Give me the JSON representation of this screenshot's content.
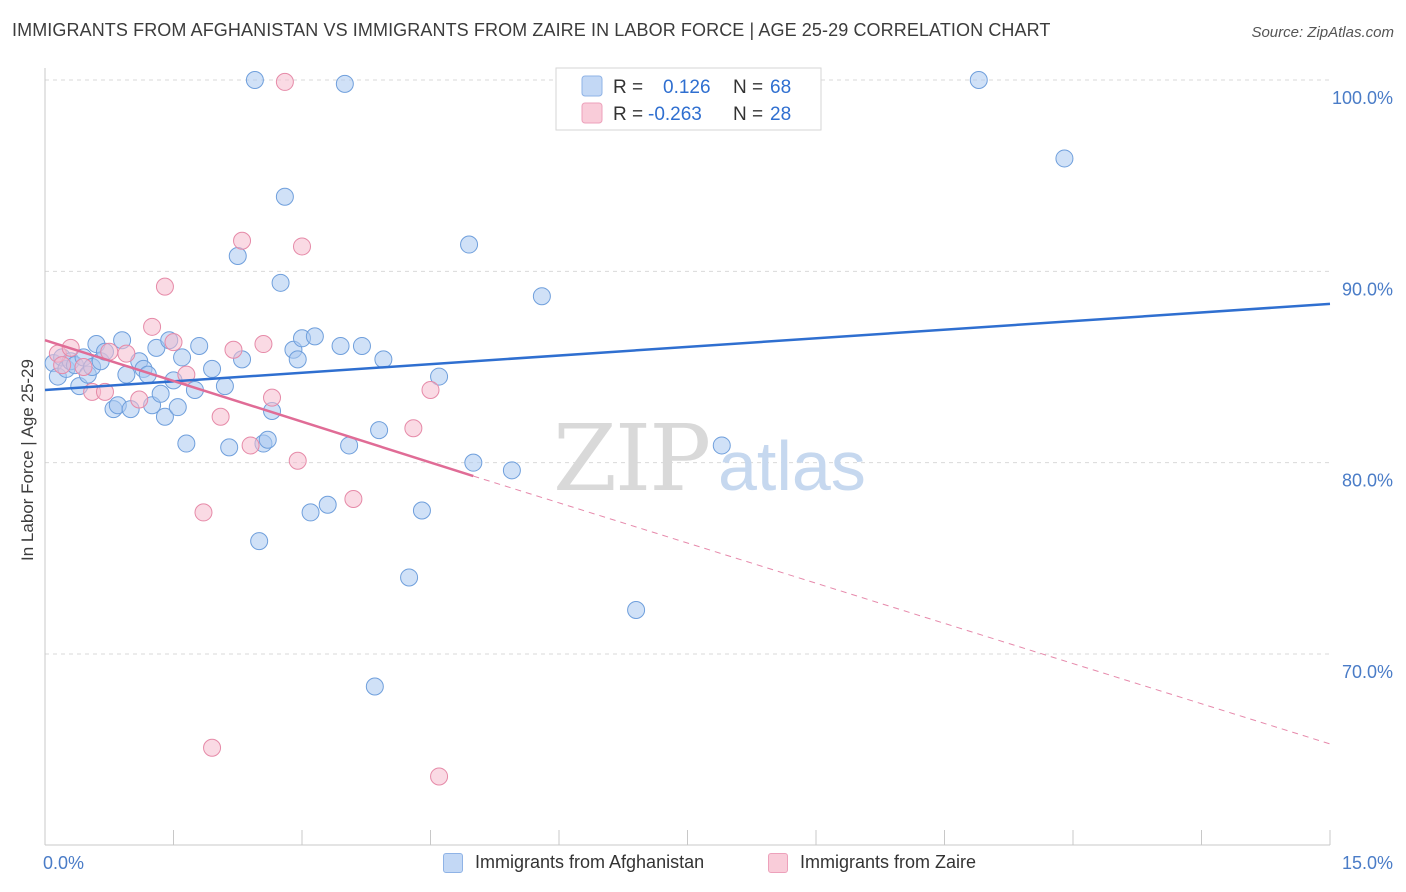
{
  "header": {
    "title": "IMMIGRANTS FROM AFGHANISTAN VS IMMIGRANTS FROM ZAIRE IN LABOR FORCE | AGE 25-29 CORRELATION CHART",
    "source": "Source: ZipAtlas.com"
  },
  "legend": {
    "row1": {
      "r_label": "R =",
      "r_value": "0.126",
      "n_label": "N =",
      "n_value": "68"
    },
    "row2": {
      "r_label": "R =",
      "r_value": "-0.263",
      "n_label": "N =",
      "n_value": "28"
    }
  },
  "bottom_legend": {
    "afghanistan": "Immigrants from Afghanistan",
    "zaire": "Immigrants from Zaire"
  },
  "watermark": {
    "zip": "ZIP",
    "atlas": "atlas"
  },
  "colors": {
    "blue_fill": "#aac8f0",
    "blue_stroke": "#6f9fdc",
    "blue_line": "#2f6fd0",
    "pink_fill": "#f6bccd",
    "pink_stroke": "#e68aa8",
    "pink_line": "#e06c96",
    "tick_text": "#4a7cc7",
    "grid": "#d9d9d9"
  },
  "chart_data": {
    "type": "scatter",
    "title": "IMMIGRANTS FROM AFGHANISTAN VS IMMIGRANTS FROM ZAIRE IN LABOR FORCE | AGE 25-29 CORRELATION CHART",
    "xlabel": "",
    "ylabel": "In Labor Force | Age 25-29",
    "xlim": [
      0,
      15
    ],
    "ylim": [
      60,
      103
    ],
    "x_tick_labels": [
      "0.0%",
      "15.0%"
    ],
    "y_ticks": [
      70,
      80,
      90,
      100
    ],
    "y_tick_labels": [
      "70.0%",
      "80.0%",
      "90.0%",
      "100.0%"
    ],
    "grid": true,
    "legend_position": "top-center",
    "series": [
      {
        "name": "Immigrants from Afghanistan",
        "color": "#aac8f0",
        "points": [
          [
            0.1,
            85.2
          ],
          [
            0.15,
            84.5
          ],
          [
            0.2,
            85.5
          ],
          [
            0.25,
            84.9
          ],
          [
            0.3,
            85.3
          ],
          [
            0.35,
            85.1
          ],
          [
            0.4,
            84.0
          ],
          [
            0.45,
            85.5
          ],
          [
            0.5,
            84.6
          ],
          [
            0.55,
            85.0
          ],
          [
            0.6,
            86.2
          ],
          [
            0.65,
            85.3
          ],
          [
            0.7,
            85.8
          ],
          [
            0.8,
            82.8
          ],
          [
            0.85,
            83.0
          ],
          [
            0.9,
            86.4
          ],
          [
            0.95,
            84.6
          ],
          [
            1.0,
            82.8
          ],
          [
            1.1,
            85.3
          ],
          [
            1.15,
            84.9
          ],
          [
            1.2,
            84.6
          ],
          [
            1.25,
            83.0
          ],
          [
            1.3,
            86.0
          ],
          [
            1.35,
            83.6
          ],
          [
            1.4,
            82.4
          ],
          [
            1.45,
            86.4
          ],
          [
            1.5,
            84.3
          ],
          [
            1.55,
            82.9
          ],
          [
            1.6,
            85.5
          ],
          [
            1.65,
            81.0
          ],
          [
            1.75,
            83.8
          ],
          [
            1.8,
            86.1
          ],
          [
            1.95,
            84.9
          ],
          [
            2.1,
            84.0
          ],
          [
            2.15,
            80.8
          ],
          [
            2.25,
            90.8
          ],
          [
            2.3,
            85.4
          ],
          [
            2.45,
            100.0
          ],
          [
            2.5,
            75.9
          ],
          [
            2.55,
            81.0
          ],
          [
            2.6,
            81.2
          ],
          [
            2.65,
            82.7
          ],
          [
            2.75,
            89.4
          ],
          [
            2.8,
            93.9
          ],
          [
            2.9,
            85.9
          ],
          [
            2.95,
            85.4
          ],
          [
            3.0,
            86.5
          ],
          [
            3.1,
            77.4
          ],
          [
            3.15,
            86.6
          ],
          [
            3.3,
            77.8
          ],
          [
            3.45,
            86.1
          ],
          [
            3.5,
            99.8
          ],
          [
            3.55,
            80.9
          ],
          [
            3.7,
            86.1
          ],
          [
            3.85,
            68.3
          ],
          [
            3.9,
            81.7
          ],
          [
            3.95,
            85.4
          ],
          [
            4.25,
            74.0
          ],
          [
            4.4,
            77.5
          ],
          [
            4.6,
            84.5
          ],
          [
            4.95,
            91.4
          ],
          [
            5.0,
            80.0
          ],
          [
            5.45,
            79.6
          ],
          [
            5.8,
            88.7
          ],
          [
            6.9,
            72.3
          ],
          [
            7.9,
            80.9
          ],
          [
            10.9,
            100.0
          ],
          [
            11.9,
            95.9
          ]
        ],
        "trend": {
          "x": [
            0,
            15
          ],
          "y": [
            83.8,
            88.3
          ]
        }
      },
      {
        "name": "Immigrants from Zaire",
        "color": "#f6bccd",
        "points": [
          [
            0.15,
            85.7
          ],
          [
            0.2,
            85.1
          ],
          [
            0.3,
            86.0
          ],
          [
            0.45,
            85.0
          ],
          [
            0.55,
            83.7
          ],
          [
            0.7,
            83.7
          ],
          [
            0.75,
            85.8
          ],
          [
            0.95,
            85.7
          ],
          [
            1.1,
            83.3
          ],
          [
            1.25,
            87.1
          ],
          [
            1.4,
            89.2
          ],
          [
            1.5,
            86.3
          ],
          [
            1.65,
            84.6
          ],
          [
            1.85,
            77.4
          ],
          [
            1.95,
            65.1
          ],
          [
            2.05,
            82.4
          ],
          [
            2.2,
            85.9
          ],
          [
            2.3,
            91.6
          ],
          [
            2.4,
            80.9
          ],
          [
            2.55,
            86.2
          ],
          [
            2.65,
            83.4
          ],
          [
            2.8,
            99.9
          ],
          [
            2.95,
            80.1
          ],
          [
            3.0,
            91.3
          ],
          [
            3.6,
            78.1
          ],
          [
            4.3,
            81.8
          ],
          [
            4.5,
            83.8
          ],
          [
            4.6,
            63.6
          ]
        ],
        "trend": {
          "x": [
            0,
            5.0
          ],
          "y": [
            86.4,
            79.3
          ]
        },
        "trend_dashed": {
          "x": [
            5.0,
            15
          ],
          "y": [
            79.3,
            65.3
          ]
        }
      }
    ]
  }
}
